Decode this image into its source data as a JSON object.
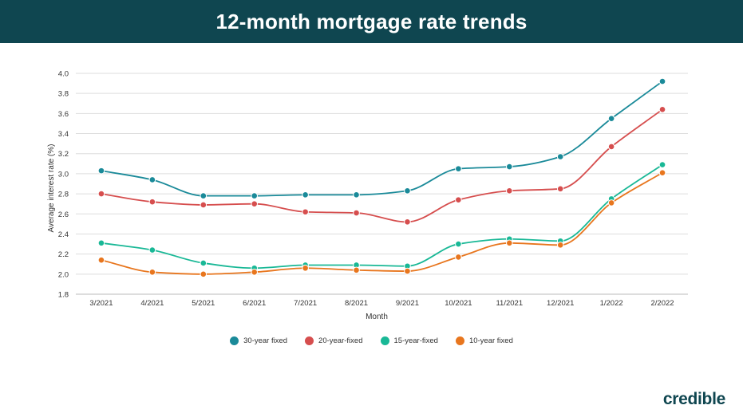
{
  "header": {
    "title": "12-month mortgage rate trends"
  },
  "brand": {
    "name": "credible"
  },
  "colors": {
    "banner": "#0f4650",
    "grid": "#dddddd",
    "series": [
      "#1a8a99",
      "#d64e4e",
      "#19b896",
      "#e8761e"
    ]
  },
  "chart_data": {
    "type": "line",
    "xlabel": "Month",
    "ylabel": "Average interest rate (%)",
    "ylim": [
      1.8,
      4.0
    ],
    "yticks": [
      "4.0",
      "3.8",
      "3.6",
      "3.4",
      "3.2",
      "3.0",
      "2.8",
      "2.6",
      "2.4",
      "2.2",
      "2.0",
      "1.8"
    ],
    "grid": true,
    "legend_position": "bottom",
    "categories": [
      "3/2021",
      "4/2021",
      "5/2021",
      "6/2021",
      "7/2021",
      "8/2021",
      "9/2021",
      "10/2021",
      "11/2021",
      "12/2021",
      "1/2022",
      "2/2022"
    ],
    "series": [
      {
        "name": "30-year fixed",
        "values": [
          3.03,
          2.94,
          2.78,
          2.78,
          2.79,
          2.79,
          2.83,
          3.05,
          3.07,
          3.17,
          3.55,
          3.92
        ]
      },
      {
        "name": "20-year-fixed",
        "values": [
          2.8,
          2.72,
          2.69,
          2.7,
          2.62,
          2.61,
          2.52,
          2.74,
          2.83,
          2.85,
          3.27,
          3.64
        ]
      },
      {
        "name": "15-year-fixed",
        "values": [
          2.31,
          2.24,
          2.11,
          2.06,
          2.09,
          2.09,
          2.08,
          2.3,
          2.35,
          2.33,
          2.75,
          3.09
        ]
      },
      {
        "name": "10-year fixed",
        "values": [
          2.14,
          2.02,
          2.0,
          2.02,
          2.06,
          2.04,
          2.03,
          2.17,
          2.31,
          2.29,
          2.71,
          3.01
        ]
      }
    ]
  }
}
